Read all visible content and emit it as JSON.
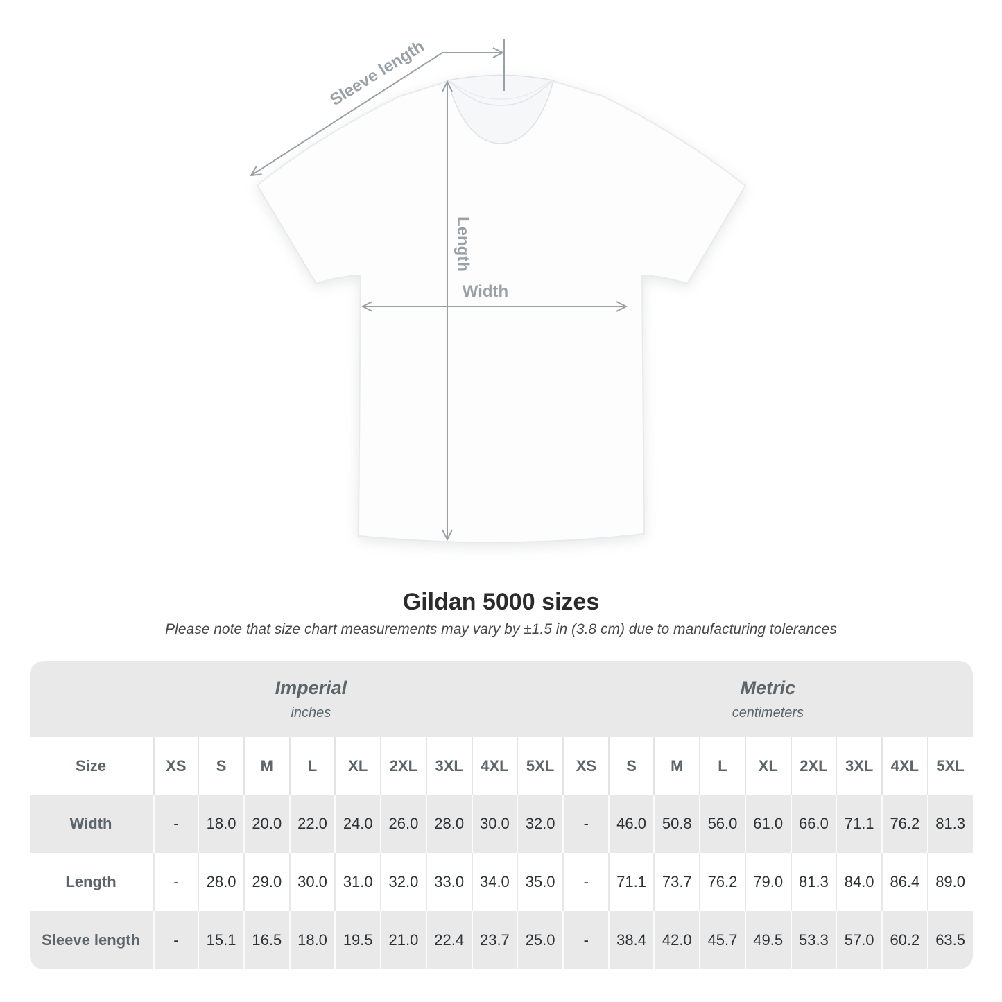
{
  "page": {
    "title": "Gildan 5000 sizes",
    "note": "Please note that size chart measurements may vary by ±1.5 in (3.8 cm) due to manufacturing tolerances"
  },
  "diagram": {
    "sleeve_length_label": "Sleeve length",
    "length_label": "Length",
    "width_label": "Width"
  },
  "colors": {
    "table_stripe": "#e9e9e9",
    "header_text": "#5b656a",
    "value_text": "#2d3134",
    "annotation_gray": "#99a1a7",
    "title_text": "#2b2b2b"
  },
  "chart_data": {
    "type": "table",
    "title": "Gildan 5000 sizes",
    "note": "Please note that size chart measurements may vary by ±1.5 in (3.8 cm) due to manufacturing tolerances",
    "size_header_label": "Size",
    "sections": [
      {
        "name": "Imperial",
        "unit": "inches"
      },
      {
        "name": "Metric",
        "unit": "centimeters"
      }
    ],
    "sizes": [
      "XS",
      "S",
      "M",
      "L",
      "XL",
      "2XL",
      "3XL",
      "4XL",
      "5XL"
    ],
    "rows": [
      {
        "label": "Width",
        "imperial": [
          "-",
          "18.0",
          "20.0",
          "22.0",
          "24.0",
          "26.0",
          "28.0",
          "30.0",
          "32.0"
        ],
        "metric": [
          "-",
          "46.0",
          "50.8",
          "56.0",
          "61.0",
          "66.0",
          "71.1",
          "76.2",
          "81.3"
        ]
      },
      {
        "label": "Length",
        "imperial": [
          "-",
          "28.0",
          "29.0",
          "30.0",
          "31.0",
          "32.0",
          "33.0",
          "34.0",
          "35.0"
        ],
        "metric": [
          "-",
          "71.1",
          "73.7",
          "76.2",
          "79.0",
          "81.3",
          "84.0",
          "86.4",
          "89.0"
        ]
      },
      {
        "label": "Sleeve length",
        "imperial": [
          "-",
          "15.1",
          "16.5",
          "18.0",
          "19.5",
          "21.0",
          "22.4",
          "23.7",
          "25.0"
        ],
        "metric": [
          "-",
          "38.4",
          "42.0",
          "45.7",
          "49.5",
          "53.3",
          "57.0",
          "60.2",
          "63.5"
        ]
      }
    ]
  }
}
